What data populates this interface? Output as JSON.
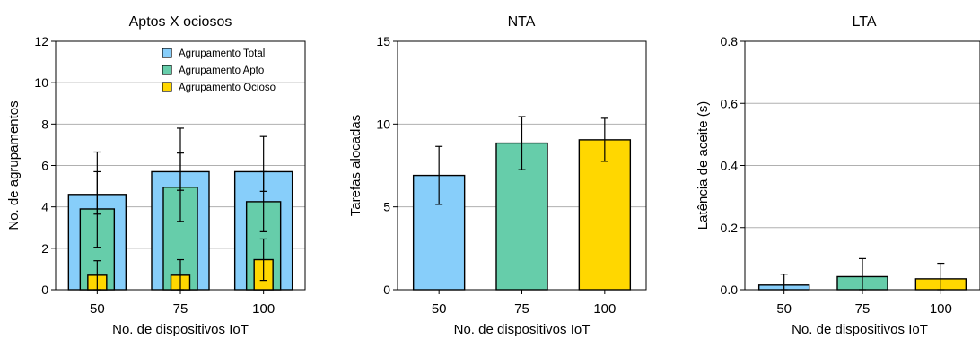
{
  "chart_data": [
    {
      "type": "bar",
      "title": "Aptos X ociosos",
      "xlabel": "No. de dispositivos IoT",
      "ylabel": "No. de agrupamentos",
      "ylim": [
        0,
        12
      ],
      "yticks": [
        0,
        2,
        4,
        6,
        8,
        10,
        12
      ],
      "categories": [
        "50",
        "75",
        "100"
      ],
      "grid": "horizontal",
      "legend": "top-right",
      "series": [
        {
          "name": "Agrupamento Total",
          "color": "#87cefa",
          "values": [
            4.6,
            5.7,
            5.7
          ],
          "err_low": [
            0.95,
            0.9,
            0.95
          ],
          "err_high": [
            2.05,
            2.1,
            1.7
          ]
        },
        {
          "name": "Agrupamento Apto",
          "color": "#66cdaa",
          "values": [
            3.9,
            4.95,
            4.25
          ],
          "err_low": [
            1.85,
            1.65,
            1.45
          ],
          "err_high": [
            1.8,
            1.65,
            1.45
          ]
        },
        {
          "name": "Agrupamento Ocioso",
          "color": "#ffd700",
          "values": [
            0.7,
            0.7,
            1.45
          ],
          "err_low": [
            0.7,
            0.7,
            1.0
          ],
          "err_high": [
            0.7,
            0.75,
            1.0
          ]
        }
      ]
    },
    {
      "type": "bar",
      "title": "NTA",
      "xlabel": "No. de dispositivos IoT",
      "ylabel": "Tarefas alocadas",
      "ylim": [
        0,
        15
      ],
      "yticks": [
        0,
        5,
        10,
        15
      ],
      "categories": [
        "50",
        "75",
        "100"
      ],
      "grid": "horizontal",
      "series": [
        {
          "values": [
            6.9,
            8.85,
            9.05
          ],
          "colors": [
            "#87cefa",
            "#66cdaa",
            "#ffd700"
          ],
          "err_low": [
            1.75,
            1.6,
            1.3
          ],
          "err_high": [
            1.75,
            1.6,
            1.3
          ]
        }
      ]
    },
    {
      "type": "bar",
      "title": "LTA",
      "xlabel": "No. de dispositivos IoT",
      "ylabel": "Latência de aceite (s)",
      "ylim": [
        0,
        0.8
      ],
      "yticks": [
        0,
        0.2,
        0.4,
        0.6,
        0.8
      ],
      "categories": [
        "50",
        "75",
        "100"
      ],
      "grid": "horizontal",
      "series": [
        {
          "values": [
            0.015,
            0.042,
            0.035
          ],
          "colors": [
            "#87cefa",
            "#66cdaa",
            "#ffd700"
          ],
          "err_low": [
            0.015,
            0.042,
            0.035
          ],
          "err_high": [
            0.035,
            0.058,
            0.05
          ]
        }
      ]
    }
  ]
}
